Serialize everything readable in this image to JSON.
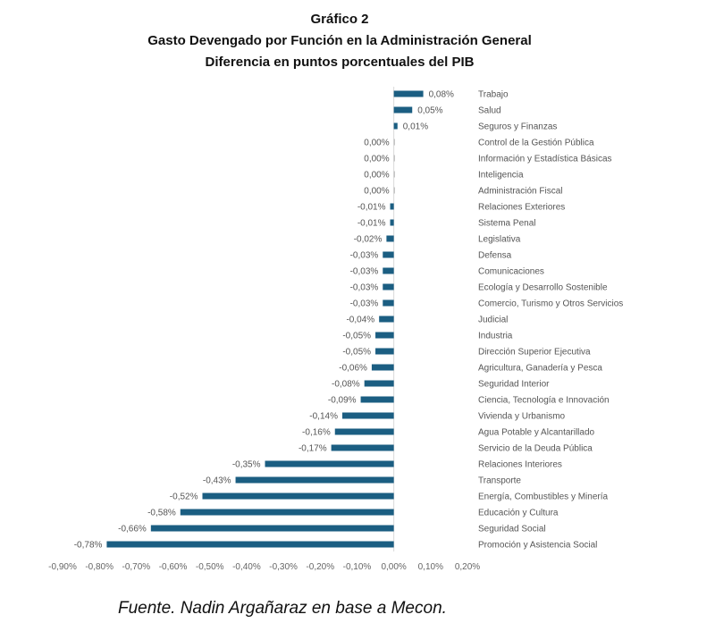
{
  "title_lines": [
    "Gráfico 2",
    "Gasto Devengado por Función en la Administración General",
    "Diferencia en puntos porcentuales del PIB"
  ],
  "source": "Fuente. Nadin Argañaraz en base a Mecon.",
  "chart_data": {
    "type": "bar",
    "orientation": "horizontal",
    "title": "Gráfico 2 — Gasto Devengado por Función en la Administración General — Diferencia en puntos porcentuales del PIB",
    "xlabel": "",
    "ylabel": "",
    "xlim": [
      -0.9,
      0.2
    ],
    "xticks": [
      "-0,90%",
      "-0,80%",
      "-0,70%",
      "-0,60%",
      "-0,50%",
      "-0,40%",
      "-0,30%",
      "-0,20%",
      "-0,10%",
      "0,00%",
      "0,10%",
      "0,20%"
    ],
    "grid": false,
    "bar_color": "#1b5e82",
    "categories": [
      "Trabajo",
      "Salud",
      "Seguros y Finanzas",
      "Control de la Gestión Pública",
      "Información y Estadística Básicas",
      "Inteligencia",
      "Administración Fiscal",
      "Relaciones Exteriores",
      "Sistema Penal",
      "Legislativa",
      "Defensa",
      "Comunicaciones",
      "Ecología y Desarrollo Sostenible",
      "Comercio, Turismo y Otros Servicios",
      "Judicial",
      "Industria",
      "Dirección Superior Ejecutiva",
      "Agricultura, Ganadería y Pesca",
      "Seguridad Interior",
      "Ciencia, Tecnología e Innovación",
      "Vivienda y Urbanismo",
      "Agua Potable y Alcantarillado",
      "Servicio de la Deuda Pública",
      "Relaciones Interiores",
      "Transporte",
      "Energía, Combustibles y Minería",
      "Educación y Cultura",
      "Seguridad Social",
      "Promoción y Asistencia Social"
    ],
    "values": [
      0.08,
      0.05,
      0.01,
      0.0,
      0.0,
      0.0,
      0.0,
      -0.01,
      -0.01,
      -0.02,
      -0.03,
      -0.03,
      -0.03,
      -0.03,
      -0.04,
      -0.05,
      -0.05,
      -0.06,
      -0.08,
      -0.09,
      -0.14,
      -0.16,
      -0.17,
      -0.35,
      -0.43,
      -0.52,
      -0.58,
      -0.66,
      -0.78
    ],
    "data_labels": [
      "0,08%",
      "0,05%",
      "0,01%",
      "0,00%",
      "0,00%",
      "0,00%",
      "0,00%",
      "-0,01%",
      "-0,01%",
      "-0,02%",
      "-0,03%",
      "-0,03%",
      "-0,03%",
      "-0,03%",
      "-0,04%",
      "-0,05%",
      "-0,05%",
      "-0,06%",
      "-0,08%",
      "-0,09%",
      "-0,14%",
      "-0,16%",
      "-0,17%",
      "-0,35%",
      "-0,43%",
      "-0,52%",
      "-0,58%",
      "-0,66%",
      "-0,78%"
    ]
  }
}
